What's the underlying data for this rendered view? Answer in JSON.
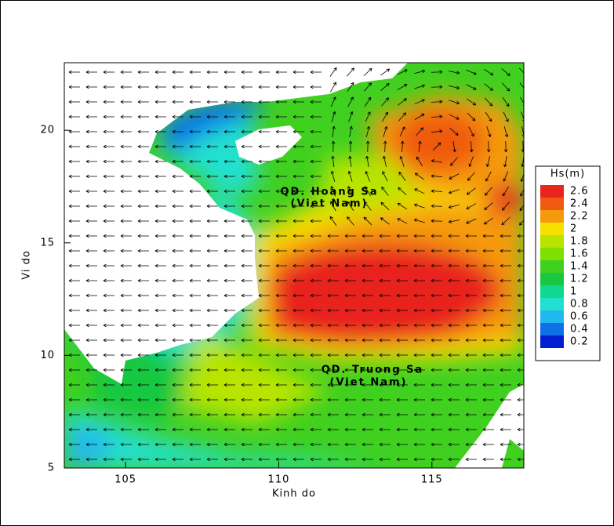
{
  "chart_data": {
    "type": "contour",
    "xlabel": "Kinh do",
    "ylabel": "Vi do",
    "xlim": [
      103,
      118
    ],
    "ylim": [
      5,
      23
    ],
    "xticks": [
      105,
      110,
      115
    ],
    "yticks": [
      5,
      10,
      15,
      20
    ],
    "annotations": [
      "QD. Hoang Sa",
      "(Viet Nam)",
      "QD. Truong Sa",
      "(Viet Nam)"
    ],
    "colorbar": {
      "title": "Hs(m)",
      "levels": [
        2.6,
        2.4,
        2.2,
        2,
        1.8,
        1.6,
        1.4,
        1.2,
        1,
        0.8,
        0.6,
        0.4,
        0.2
      ],
      "colors": [
        "#e8241c",
        "#f05a10",
        "#f59a0a",
        "#f5e000",
        "#b8e400",
        "#7ee000",
        "#40d020",
        "#18c840",
        "#10d890",
        "#20e0d0",
        "#20b8f0",
        "#1070e8",
        "#0020d0"
      ]
    }
  }
}
